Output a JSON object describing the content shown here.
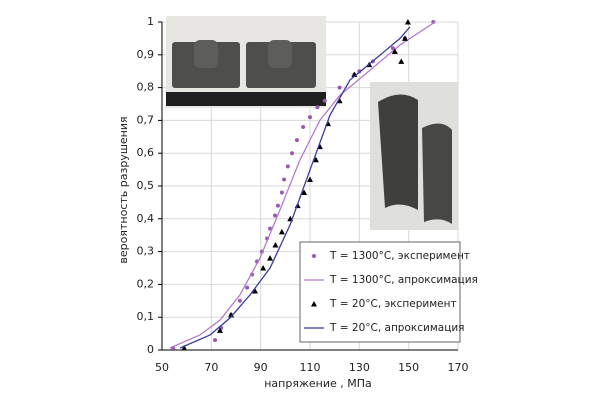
{
  "chart_data": {
    "type": "scatter",
    "x_label": "напряжение , МПа",
    "y_label": "вероятность разрушения",
    "xlim": [
      50,
      170
    ],
    "xticks": [
      50,
      70,
      90,
      110,
      130,
      150,
      170
    ],
    "ylim": [
      0,
      1
    ],
    "yticks": [
      0,
      {
        "value": 0.1,
        "label": "0,1"
      },
      {
        "value": 0.2,
        "label": "0,2"
      },
      {
        "value": 0.3,
        "label": "0,3"
      },
      {
        "value": 0.4,
        "label": "0,4"
      },
      {
        "value": 0.5,
        "label": "0,5"
      },
      {
        "value": 0.6,
        "label": "0,6"
      },
      {
        "value": 0.7,
        "label": "0,7"
      },
      {
        "value": 0.8,
        "label": "0,8"
      },
      {
        "value": 0.9,
        "label": "0,9"
      },
      1
    ],
    "grid": true,
    "legend": "lower right",
    "series": [
      {
        "name": "T = 1300°C, эксперимент",
        "color": "#9b59b6",
        "mode": "markers",
        "marker": "circle",
        "x": [
          54.5,
          71.5,
          74,
          78,
          81.6,
          84.5,
          86.5,
          88.5,
          90.5,
          92.6,
          93.8,
          95.8,
          97,
          98.6,
          99.5,
          101,
          102.7,
          104.7,
          107.2,
          110,
          113,
          116,
          122,
          128,
          130,
          135.5,
          143.6,
          148.5,
          160
        ],
        "values": [
          0.006,
          0.03,
          0.067,
          0.107,
          0.15,
          0.19,
          0.23,
          0.27,
          0.3,
          0.34,
          0.37,
          0.41,
          0.44,
          0.48,
          0.52,
          0.56,
          0.6,
          0.64,
          0.68,
          0.71,
          0.74,
          0.76,
          0.8,
          0.84,
          0.85,
          0.88,
          0.92,
          0.95,
          1.0
        ]
      },
      {
        "name": "T = 1300°C, апроксимация",
        "color": "#b57cc9",
        "mode": "line",
        "x": [
          53.2,
          65.4,
          73.5,
          81.6,
          89.7,
          97.8,
          105.9,
          114,
          122.2,
          134.3,
          146.5,
          160.7
        ],
        "values": [
          0.006,
          0.046,
          0.091,
          0.168,
          0.28,
          0.427,
          0.579,
          0.7,
          0.777,
          0.853,
          0.93,
          1.0
        ]
      },
      {
        "name": "T = 20°C, эксперимент",
        "color": "#000000",
        "mode": "markers",
        "marker": "triangle",
        "x": [
          59,
          73.5,
          78,
          87.7,
          91,
          93.8,
          96,
          98.6,
          102,
          105,
          107.6,
          110,
          112.4,
          114,
          117.3,
          122,
          128,
          134,
          144.4,
          147,
          148.5,
          149.7
        ],
        "values": [
          0.006,
          0.06,
          0.107,
          0.18,
          0.25,
          0.28,
          0.32,
          0.36,
          0.4,
          0.44,
          0.48,
          0.52,
          0.58,
          0.62,
          0.69,
          0.76,
          0.84,
          0.87,
          0.91,
          0.88,
          0.95,
          1.0
        ]
      },
      {
        "name": "T = 20°C, апроксимация",
        "color": "#3b3b9e",
        "mode": "line",
        "x": [
          57.3,
          69.5,
          77.6,
          85.7,
          93.8,
          101.9,
          110,
          118.1,
          126.2,
          138.4,
          146.5,
          150.5
        ],
        "values": [
          0.006,
          0.046,
          0.098,
          0.168,
          0.25,
          0.381,
          0.549,
          0.716,
          0.823,
          0.899,
          0.95,
          0.985
        ]
      }
    ]
  }
}
